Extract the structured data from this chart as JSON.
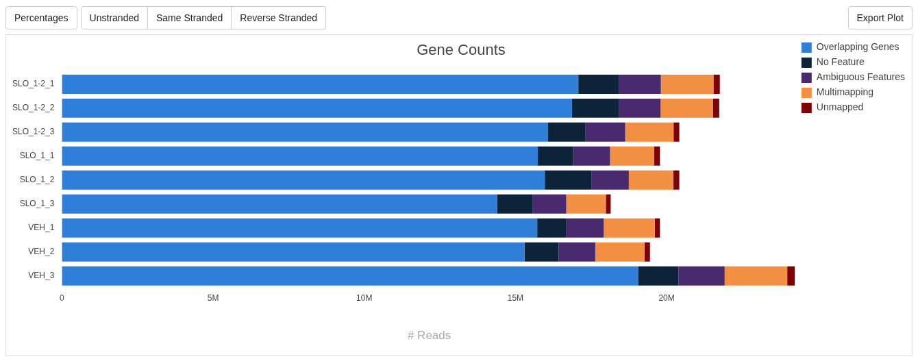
{
  "chart_data": {
    "type": "bar",
    "orientation": "horizontal",
    "stacked": true,
    "title": "Gene Counts",
    "xlabel": "# Reads",
    "annotations": [
      "Percentages",
      "Unstranded",
      "Same Stranded",
      "Reverse Stranded",
      "Export Plot"
    ],
    "categories": [
      "SLO_1-2_1",
      "SLO_1-2_2",
      "SLO_1-2_3",
      "SLO_1_1",
      "SLO_1_2",
      "SLO_1_3",
      "VEH_1",
      "VEH_2",
      "VEH_3"
    ],
    "series": [
      {
        "name": "Overlapping Genes",
        "color": "#2f7ed8",
        "values": [
          17.08,
          16.87,
          16.08,
          15.74,
          15.97,
          14.39,
          15.72,
          15.3,
          19.07
        ]
      },
      {
        "name": "No Feature",
        "color": "#0d233a",
        "values": [
          1.35,
          1.56,
          1.24,
          1.17,
          1.54,
          1.17,
          0.95,
          1.13,
          1.32
        ]
      },
      {
        "name": "Ambiguous Features",
        "color": "#492970",
        "values": [
          1.38,
          1.37,
          1.31,
          1.22,
          1.24,
          1.12,
          1.25,
          1.21,
          1.53
        ]
      },
      {
        "name": "Multimapping",
        "color": "#f28f43",
        "values": [
          1.74,
          1.73,
          1.6,
          1.46,
          1.47,
          1.31,
          1.69,
          1.63,
          2.07
        ]
      },
      {
        "name": "Unmapped",
        "color": "#7f0000",
        "values": [
          0.21,
          0.21,
          0.19,
          0.19,
          0.2,
          0.16,
          0.17,
          0.18,
          0.25
        ]
      }
    ],
    "xlim": [
      0,
      24.3
    ],
    "xticks": [
      0,
      {
        "value": 5,
        "label": "5M"
      },
      {
        "value": 10,
        "label": "10M"
      },
      {
        "value": 15,
        "label": "15M"
      },
      {
        "value": 20,
        "label": "20M"
      }
    ],
    "grid": false,
    "legend": "top right"
  }
}
